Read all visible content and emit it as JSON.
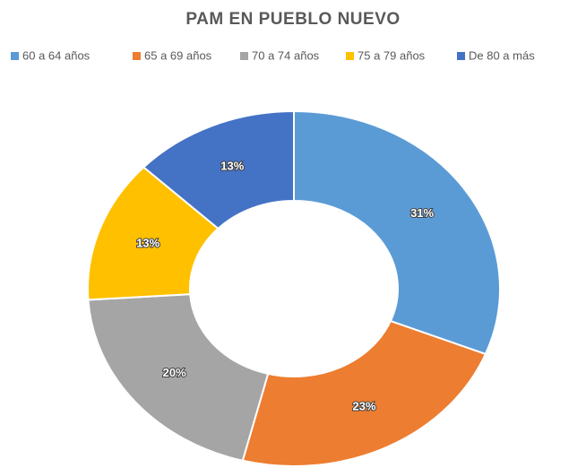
{
  "chart_data": {
    "type": "donut",
    "title": "PAM EN PUEBLO NUEVO",
    "categories": [
      "60 a 64 años",
      "65 a 69 años",
      "70 a 74 años",
      "75 a 79 años",
      "De 80 a más"
    ],
    "values": [
      31,
      23,
      20,
      13,
      13
    ],
    "value_labels": [
      "31%",
      "23%",
      "20%",
      "13%",
      "13%"
    ],
    "colors": [
      "#5b9bd5",
      "#ed7d31",
      "#a5a5a5",
      "#ffc000",
      "#4472c4"
    ],
    "legend": "top"
  }
}
